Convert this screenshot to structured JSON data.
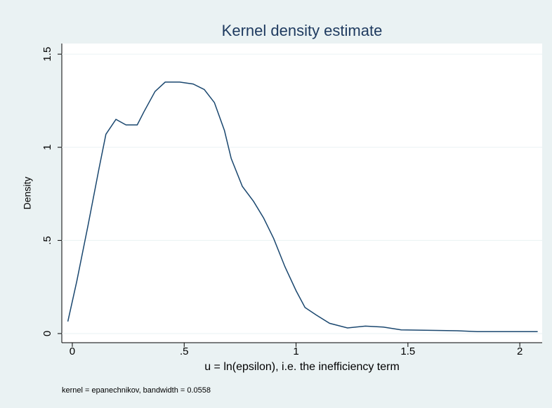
{
  "chart_data": {
    "type": "line",
    "title": "Kernel density estimate",
    "xlabel": "u = ln(epsilon), i.e. the inefficiency term",
    "ylabel": "Density",
    "note": "kernel = epanechnikov, bandwidth = 0.0558",
    "x": [
      -0.02,
      0.02,
      0.07,
      0.12,
      0.15,
      0.195,
      0.24,
      0.29,
      0.32,
      0.37,
      0.415,
      0.48,
      0.54,
      0.59,
      0.635,
      0.68,
      0.71,
      0.76,
      0.81,
      0.855,
      0.9,
      0.95,
      1.0,
      1.04,
      1.09,
      1.15,
      1.23,
      1.31,
      1.39,
      1.47,
      1.72,
      1.81,
      2.08
    ],
    "series": [
      {
        "name": "Density",
        "color": "#1a476f",
        "values": [
          0.065,
          0.28,
          0.58,
          0.89,
          1.07,
          1.15,
          1.12,
          1.12,
          1.19,
          1.3,
          1.35,
          1.35,
          1.34,
          1.31,
          1.24,
          1.09,
          0.94,
          0.79,
          0.71,
          0.62,
          0.51,
          0.36,
          0.23,
          0.14,
          0.1,
          0.055,
          0.03,
          0.04,
          0.035,
          0.02,
          0.015,
          0.01,
          0.01
        ]
      }
    ],
    "xlim": [
      -0.047,
      2.1
    ],
    "ylim": [
      -0.049,
      1.557
    ],
    "xticks": [
      0,
      {
        "value": 0.5,
        "label": ".5"
      },
      1,
      1.5,
      2
    ],
    "yticks": [
      0,
      {
        "value": 0.5,
        "label": ".5"
      },
      1,
      1.5
    ],
    "grid": true
  }
}
